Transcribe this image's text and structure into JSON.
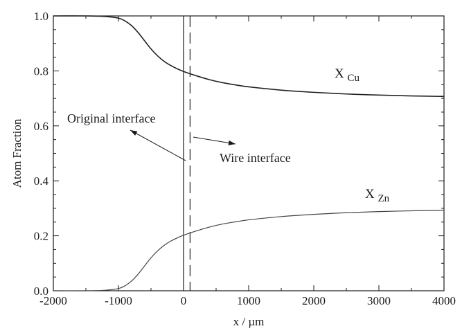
{
  "chart_data": {
    "type": "line",
    "xlabel": "x / µm",
    "ylabel": "Atom Fraction",
    "xlim": [
      -2000,
      4000
    ],
    "ylim": [
      0.0,
      1.0
    ],
    "xticks": [
      -2000,
      -1000,
      0,
      1000,
      2000,
      3000,
      4000
    ],
    "xtick_labels": [
      "-2000",
      "-1000",
      "0",
      "1000",
      "2000",
      "3000",
      "4000"
    ],
    "yticks": [
      0.0,
      0.2,
      0.4,
      0.6,
      0.8,
      1.0
    ],
    "ytick_labels": [
      "0.0",
      "0.2",
      "0.4",
      "0.6",
      "0.8",
      "1.0"
    ],
    "grid": false,
    "series": [
      {
        "name": "X Cu",
        "label_main": "X",
        "label_sub": "Cu",
        "color": "#222222",
        "x": [
          -2000,
          -1500,
          -1200,
          -1000,
          -900,
          -800,
          -700,
          -600,
          -500,
          -400,
          -300,
          -200,
          -100,
          0,
          200,
          400,
          600,
          800,
          1000,
          1500,
          2000,
          2500,
          3000,
          3500,
          4000
        ],
        "y": [
          1.0,
          1.0,
          0.998,
          0.992,
          0.982,
          0.965,
          0.94,
          0.91,
          0.88,
          0.855,
          0.835,
          0.82,
          0.808,
          0.798,
          0.782,
          0.768,
          0.757,
          0.749,
          0.742,
          0.73,
          0.722,
          0.716,
          0.712,
          0.709,
          0.707
        ]
      },
      {
        "name": "X Zn",
        "label_main": "X",
        "label_sub": "Zn",
        "color": "#444444",
        "x": [
          -2000,
          -1500,
          -1200,
          -1000,
          -900,
          -800,
          -700,
          -600,
          -500,
          -400,
          -300,
          -200,
          -100,
          0,
          200,
          400,
          600,
          800,
          1000,
          1500,
          2000,
          2500,
          3000,
          3500,
          4000
        ],
        "y": [
          0.0,
          0.0,
          0.002,
          0.008,
          0.018,
          0.035,
          0.06,
          0.09,
          0.12,
          0.145,
          0.165,
          0.18,
          0.192,
          0.202,
          0.218,
          0.232,
          0.243,
          0.251,
          0.258,
          0.27,
          0.278,
          0.284,
          0.288,
          0.291,
          0.293
        ]
      }
    ],
    "interfaces": [
      {
        "name": "Original interface",
        "x": 0,
        "style": "solid"
      },
      {
        "name": "Wire interface",
        "x": 100,
        "style": "dashed"
      }
    ],
    "annotations": [
      {
        "text": "Original interface",
        "points_to": "Original interface"
      },
      {
        "text": "Wire interface",
        "points_to": "Wire interface"
      }
    ]
  }
}
